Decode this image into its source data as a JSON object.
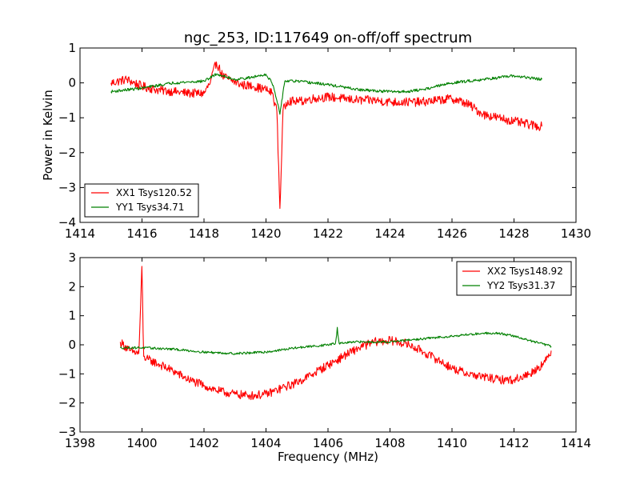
{
  "chart_data": [
    {
      "type": "line",
      "title": "ngc_253, ID:117649 on-off/off spectrum",
      "xlabel": "",
      "ylabel": "Power in Kelvin",
      "xlim": [
        1414,
        1430
      ],
      "ylim": [
        -4,
        1
      ],
      "xticks": [
        1414,
        1416,
        1418,
        1420,
        1422,
        1424,
        1426,
        1428,
        1430
      ],
      "yticks": [
        -4,
        -3,
        -2,
        -1,
        0,
        1
      ],
      "xtick_labels": [
        "1414",
        "1416",
        "1418",
        "1420",
        "1422",
        "1424",
        "1426",
        "1428",
        "1430"
      ],
      "ytick_labels": [
        "−4",
        "−3",
        "−2",
        "−1",
        "0",
        "1"
      ],
      "grid": false,
      "legend_position": "lower-left",
      "series": [
        {
          "name": "XX1 Tsys120.52",
          "color": "#ff0000",
          "noise": 0.13,
          "x": [
            1415.0,
            1415.5,
            1416.0,
            1416.5,
            1417.0,
            1417.5,
            1418.0,
            1418.2,
            1418.4,
            1418.6,
            1418.8,
            1419.2,
            1419.6,
            1420.0,
            1420.2,
            1420.35,
            1420.45,
            1420.55,
            1420.7,
            1421.0,
            1421.5,
            1422.0,
            1422.5,
            1423.0,
            1423.5,
            1424.0,
            1424.5,
            1425.0,
            1425.5,
            1426.0,
            1426.5,
            1427.0,
            1427.5,
            1428.0,
            1428.5,
            1428.9
          ],
          "y": [
            0.0,
            0.1,
            -0.1,
            -0.2,
            -0.25,
            -0.3,
            -0.3,
            0.0,
            0.6,
            0.2,
            0.1,
            -0.05,
            -0.1,
            -0.2,
            -0.3,
            -0.8,
            -3.6,
            -0.8,
            -0.5,
            -0.55,
            -0.45,
            -0.4,
            -0.45,
            -0.5,
            -0.5,
            -0.55,
            -0.55,
            -0.55,
            -0.5,
            -0.45,
            -0.6,
            -0.9,
            -1.0,
            -1.1,
            -1.2,
            -1.25
          ]
        },
        {
          "name": "YY1 Tsys34.71",
          "color": "#008000",
          "noise": 0.04,
          "x": [
            1415.0,
            1416.0,
            1417.0,
            1418.0,
            1418.4,
            1418.6,
            1419.0,
            1419.5,
            1420.0,
            1420.2,
            1420.35,
            1420.45,
            1420.6,
            1421.0,
            1422.0,
            1423.0,
            1424.0,
            1424.5,
            1425.0,
            1426.0,
            1427.0,
            1428.0,
            1428.9
          ],
          "y": [
            -0.25,
            -0.15,
            0.0,
            0.05,
            0.25,
            0.2,
            0.1,
            0.15,
            0.25,
            0.0,
            -0.5,
            -0.9,
            0.05,
            0.05,
            -0.05,
            -0.2,
            -0.25,
            -0.25,
            -0.2,
            0.0,
            0.1,
            0.2,
            0.1
          ]
        }
      ]
    },
    {
      "type": "line",
      "title": "",
      "xlabel": "Frequency (MHz)",
      "ylabel": "",
      "xlim": [
        1398,
        1414
      ],
      "ylim": [
        -3,
        3
      ],
      "xticks": [
        1398,
        1400,
        1402,
        1404,
        1406,
        1408,
        1410,
        1412,
        1414
      ],
      "yticks": [
        -3,
        -2,
        -1,
        0,
        1,
        2,
        3
      ],
      "xtick_labels": [
        "1398",
        "1400",
        "1402",
        "1404",
        "1406",
        "1408",
        "1410",
        "1412",
        "1414"
      ],
      "ytick_labels": [
        "−3",
        "−2",
        "−1",
        "0",
        "1",
        "2",
        "3"
      ],
      "grid": false,
      "legend_position": "upper-right",
      "series": [
        {
          "name": "XX2 Tsys148.92",
          "color": "#ff0000",
          "noise": 0.15,
          "x": [
            1399.3,
            1399.6,
            1399.9,
            1400.0,
            1400.05,
            1400.2,
            1400.6,
            1401.0,
            1401.5,
            1402.0,
            1402.5,
            1403.0,
            1403.5,
            1404.0,
            1404.5,
            1405.0,
            1405.5,
            1406.0,
            1406.5,
            1407.0,
            1407.5,
            1408.0,
            1408.5,
            1409.0,
            1409.5,
            1410.0,
            1410.5,
            1411.0,
            1411.5,
            1412.0,
            1412.5,
            1413.0,
            1413.2
          ],
          "y": [
            0.1,
            -0.2,
            -0.3,
            2.7,
            -0.4,
            -0.5,
            -0.7,
            -0.9,
            -1.2,
            -1.4,
            -1.6,
            -1.7,
            -1.75,
            -1.7,
            -1.5,
            -1.3,
            -1.0,
            -0.7,
            -0.4,
            -0.1,
            0.1,
            0.15,
            0.05,
            -0.2,
            -0.5,
            -0.8,
            -1.0,
            -1.1,
            -1.2,
            -1.2,
            -1.0,
            -0.6,
            -0.2
          ]
        },
        {
          "name": "YY2 Tsys31.37",
          "color": "#008000",
          "noise": 0.04,
          "x": [
            1399.3,
            1400.0,
            1401.0,
            1402.0,
            1403.0,
            1404.0,
            1405.0,
            1406.0,
            1406.25,
            1406.3,
            1406.35,
            1407.0,
            1408.0,
            1409.0,
            1410.0,
            1411.0,
            1411.5,
            1412.0,
            1412.5,
            1413.2
          ],
          "y": [
            -0.1,
            -0.1,
            -0.15,
            -0.25,
            -0.3,
            -0.25,
            -0.1,
            0.0,
            0.05,
            0.6,
            0.05,
            0.1,
            0.1,
            0.2,
            0.3,
            0.4,
            0.4,
            0.3,
            0.15,
            -0.05
          ]
        }
      ]
    }
  ]
}
